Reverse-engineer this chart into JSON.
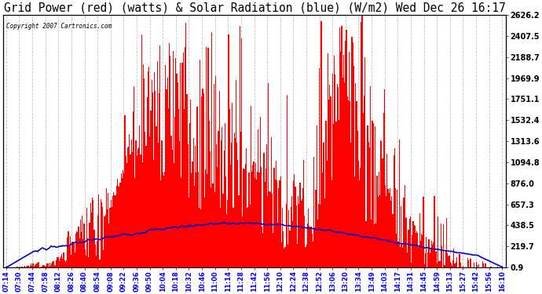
{
  "title": "Grid Power (red) (watts) & Solar Radiation (blue) (W/m2) Wed Dec 26 16:17",
  "title_fontsize": 10.5,
  "copyright_text": "Copyright 2007 Cartronics.com",
  "background_color": "#ffffff",
  "plot_bg_color": "#ffffff",
  "grid_color": "#bbbbbb",
  "red_color": "#ff0000",
  "blue_color": "#0000cc",
  "y_min": 0.9,
  "y_max": 2626.2,
  "y_ticks": [
    0.9,
    219.7,
    438.5,
    657.3,
    876.0,
    1094.8,
    1313.6,
    1532.4,
    1751.1,
    1969.9,
    2188.7,
    2407.5,
    2626.2
  ],
  "x_labels": [
    "07:14",
    "07:30",
    "07:44",
    "07:58",
    "08:12",
    "08:26",
    "08:40",
    "08:54",
    "09:08",
    "09:22",
    "09:36",
    "09:50",
    "10:04",
    "10:18",
    "10:32",
    "10:46",
    "11:00",
    "11:14",
    "11:28",
    "11:42",
    "11:56",
    "12:10",
    "12:24",
    "12:38",
    "12:52",
    "13:06",
    "13:20",
    "13:34",
    "13:49",
    "14:03",
    "14:17",
    "14:31",
    "14:45",
    "14:59",
    "15:13",
    "15:27",
    "15:42",
    "15:56",
    "16:10"
  ]
}
